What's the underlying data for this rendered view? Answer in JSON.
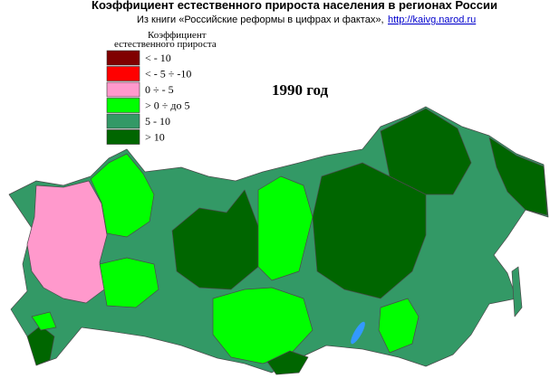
{
  "header": {
    "title": "Коэффициент естественного прироста населения в регионах России",
    "source_text": "Из книги «Российские реформы в цифрах и фактах»,",
    "source_link": "http://kaivg.narod.ru"
  },
  "legend": {
    "title_lines": [
      "Коэффициент",
      "естественного прироста"
    ],
    "items": [
      {
        "label": "< - 10",
        "color": "#800000"
      },
      {
        "label": "< - 5 ÷ -10",
        "color": "#ff0000"
      },
      {
        "label": "0 ÷ - 5",
        "color": "#ff99cc"
      },
      {
        "label": "> 0 ÷ до 5",
        "color": "#00ff00"
      },
      {
        "label": "5 - 10",
        "color": "#339966"
      },
      {
        "label": "> 10",
        "color": "#006600"
      }
    ]
  },
  "year_label": "1990 год"
}
